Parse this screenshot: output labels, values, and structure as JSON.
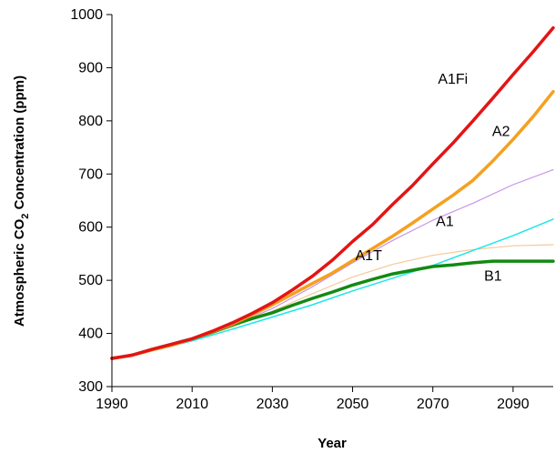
{
  "chart_data": {
    "type": "line",
    "title": "",
    "xlabel": "Year",
    "ylabel_parts": [
      "Atmospheric CO",
      "2",
      " Concentration  (ppm)"
    ],
    "xlim": [
      1990,
      2100
    ],
    "ylim": [
      300,
      1000
    ],
    "xticks": [
      1990,
      2010,
      2030,
      2050,
      2070,
      2090
    ],
    "yticks": [
      300,
      400,
      500,
      600,
      700,
      800,
      900,
      1000
    ],
    "xtick_labels": [
      "1990",
      "2010",
      "2030",
      "2050",
      "2070",
      "2090"
    ],
    "ytick_labels": [
      "300",
      "400",
      "500",
      "600",
      "700",
      "800",
      "900",
      "1000"
    ],
    "grid": false,
    "legend": "none",
    "series": [
      {
        "name": "A1Fi",
        "color": "#e41414",
        "width": 3.5,
        "label_at": [
          2075,
          880
        ],
        "x": [
          1990,
          1995,
          2000,
          2005,
          2010,
          2015,
          2020,
          2025,
          2030,
          2035,
          2040,
          2045,
          2050,
          2055,
          2060,
          2065,
          2070,
          2075,
          2080,
          2085,
          2090,
          2095,
          2100
        ],
        "y": [
          353,
          359,
          370,
          380,
          390,
          404,
          420,
          438,
          458,
          482,
          508,
          538,
          573,
          605,
          643,
          679,
          719,
          758,
          800,
          843,
          887,
          930,
          975
        ]
      },
      {
        "name": "A2",
        "color": "#f5a01e",
        "width": 3.5,
        "label_at": [
          2087,
          782
        ],
        "x": [
          1990,
          1995,
          2000,
          2005,
          2010,
          2015,
          2020,
          2025,
          2030,
          2035,
          2040,
          2045,
          2050,
          2055,
          2060,
          2065,
          2070,
          2075,
          2080,
          2085,
          2090,
          2095,
          2100
        ],
        "y": [
          353,
          359,
          369,
          378,
          390,
          403,
          418,
          435,
          454,
          474,
          494,
          514,
          537,
          560,
          583,
          608,
          634,
          660,
          688,
          725,
          765,
          808,
          855
        ]
      },
      {
        "name": "A1",
        "color": "#c894e8",
        "width": 1.2,
        "label_at": [
          2073,
          612
        ],
        "x": [
          1990,
          2000,
          2010,
          2020,
          2030,
          2040,
          2050,
          2060,
          2070,
          2080,
          2090,
          2100
        ],
        "y": [
          353,
          370,
          389,
          414,
          447,
          488,
          533,
          575,
          613,
          645,
          680,
          708
        ]
      },
      {
        "name": "A1T",
        "color": "#f6c89a",
        "width": 1.2,
        "label_at": [
          2054,
          548
        ],
        "x": [
          1990,
          2000,
          2010,
          2020,
          2030,
          2040,
          2050,
          2060,
          2070,
          2080,
          2090,
          2100
        ],
        "y": [
          353,
          370,
          388,
          412,
          442,
          475,
          506,
          530,
          547,
          558,
          565,
          567
        ]
      },
      {
        "name": "B1",
        "color": "#1ee6ea",
        "width": 1.5,
        "label_at": [
          2085,
          510
        ],
        "x": [
          1990,
          2000,
          2010,
          2020,
          2030,
          2040,
          2050,
          2060,
          2070,
          2080,
          2090,
          2100
        ],
        "y": [
          353,
          368,
          386,
          408,
          431,
          454,
          480,
          504,
          528,
          556,
          584,
          615
        ]
      },
      {
        "name": "",
        "color": "#128a12",
        "width": 3.5,
        "label_at": null,
        "x": [
          1990,
          1995,
          2000,
          2005,
          2010,
          2015,
          2020,
          2025,
          2030,
          2035,
          2040,
          2045,
          2050,
          2055,
          2060,
          2065,
          2070,
          2075,
          2080,
          2085,
          2090,
          2095,
          2100
        ],
        "y": [
          353,
          359,
          370,
          380,
          390,
          402,
          416,
          428,
          439,
          453,
          466,
          478,
          491,
          502,
          512,
          519,
          526,
          529,
          533,
          536,
          536,
          536,
          536
        ]
      }
    ]
  }
}
